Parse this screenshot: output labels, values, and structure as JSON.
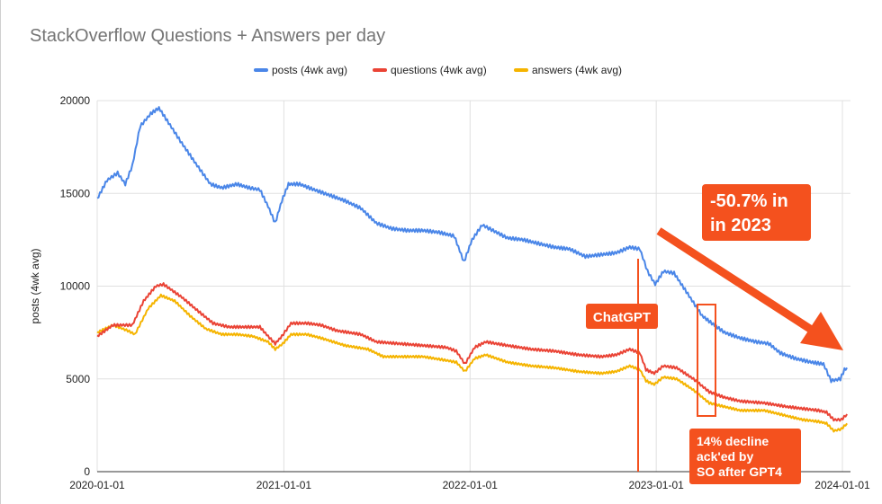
{
  "chart_data": {
    "type": "line",
    "title": "StackOverflow Questions + Answers per day",
    "ylabel": "posts (4wk avg)",
    "xlabel": "",
    "ylim": [
      0,
      20000
    ],
    "yticks": [
      0,
      5000,
      10000,
      15000,
      20000
    ],
    "xticks": [
      "2020-01-01",
      "2021-01-01",
      "2022-01-01",
      "2023-01-01",
      "2024-01-01"
    ],
    "grid": true,
    "legend_position": "top",
    "series": [
      {
        "name": "posts (4wk avg)",
        "color": "#4a86e8",
        "points": [
          [
            "2020-01-01",
            14700
          ],
          [
            "2020-01-20",
            15700
          ],
          [
            "2020-02-10",
            16100
          ],
          [
            "2020-02-25",
            15500
          ],
          [
            "2020-03-10",
            16500
          ],
          [
            "2020-03-25",
            18600
          ],
          [
            "2020-04-15",
            19300
          ],
          [
            "2020-05-01",
            19600
          ],
          [
            "2020-05-20",
            18800
          ],
          [
            "2020-06-15",
            17700
          ],
          [
            "2020-07-15",
            16500
          ],
          [
            "2020-08-10",
            15500
          ],
          [
            "2020-09-01",
            15300
          ],
          [
            "2020-10-01",
            15500
          ],
          [
            "2020-10-25",
            15300
          ],
          [
            "2020-11-15",
            15200
          ],
          [
            "2020-12-01",
            14300
          ],
          [
            "2020-12-15",
            13400
          ],
          [
            "2020-12-28",
            14600
          ],
          [
            "2021-01-10",
            15500
          ],
          [
            "2021-02-01",
            15500
          ],
          [
            "2021-03-01",
            15200
          ],
          [
            "2021-04-01",
            14900
          ],
          [
            "2021-05-01",
            14600
          ],
          [
            "2021-06-01",
            14200
          ],
          [
            "2021-07-01",
            13400
          ],
          [
            "2021-08-01",
            13100
          ],
          [
            "2021-09-01",
            13000
          ],
          [
            "2021-10-01",
            13000
          ],
          [
            "2021-11-01",
            12900
          ],
          [
            "2021-12-01",
            12700
          ],
          [
            "2021-12-20",
            11300
          ],
          [
            "2022-01-05",
            12500
          ],
          [
            "2022-01-25",
            13300
          ],
          [
            "2022-02-15",
            13000
          ],
          [
            "2022-03-15",
            12600
          ],
          [
            "2022-04-15",
            12500
          ],
          [
            "2022-05-15",
            12300
          ],
          [
            "2022-06-15",
            12100
          ],
          [
            "2022-07-15",
            12000
          ],
          [
            "2022-08-15",
            11600
          ],
          [
            "2022-09-15",
            11700
          ],
          [
            "2022-10-15",
            11800
          ],
          [
            "2022-11-10",
            12100
          ],
          [
            "2022-11-30",
            12000
          ],
          [
            "2022-12-15",
            10800
          ],
          [
            "2022-12-30",
            10100
          ],
          [
            "2023-01-15",
            10800
          ],
          [
            "2023-02-05",
            10700
          ],
          [
            "2023-03-01",
            9700
          ],
          [
            "2023-04-01",
            8400
          ],
          [
            "2023-04-20",
            8000
          ],
          [
            "2023-05-15",
            7500
          ],
          [
            "2023-06-15",
            7200
          ],
          [
            "2023-07-15",
            7000
          ],
          [
            "2023-08-10",
            6900
          ],
          [
            "2023-09-01",
            6400
          ],
          [
            "2023-10-01",
            6100
          ],
          [
            "2023-11-01",
            5900
          ],
          [
            "2023-11-25",
            5800
          ],
          [
            "2023-12-10",
            4900
          ],
          [
            "2023-12-28",
            5000
          ],
          [
            "2024-01-05",
            5500
          ],
          [
            "2024-01-10",
            5600
          ]
        ]
      },
      {
        "name": "questions (4wk avg)",
        "color": "#ea4335",
        "points": [
          [
            "2020-01-01",
            7300
          ],
          [
            "2020-02-01",
            7900
          ],
          [
            "2020-03-10",
            7900
          ],
          [
            "2020-04-01",
            9200
          ],
          [
            "2020-04-25",
            10000
          ],
          [
            "2020-05-10",
            10100
          ],
          [
            "2020-06-15",
            9400
          ],
          [
            "2020-07-15",
            8700
          ],
          [
            "2020-08-15",
            8000
          ],
          [
            "2020-09-15",
            7800
          ],
          [
            "2020-10-15",
            7800
          ],
          [
            "2020-11-15",
            7800
          ],
          [
            "2020-12-01",
            7300
          ],
          [
            "2020-12-15",
            6900
          ],
          [
            "2020-12-28",
            7300
          ],
          [
            "2021-01-15",
            8000
          ],
          [
            "2021-02-15",
            8000
          ],
          [
            "2021-03-15",
            7900
          ],
          [
            "2021-04-15",
            7600
          ],
          [
            "2021-06-01",
            7400
          ],
          [
            "2021-07-01",
            7000
          ],
          [
            "2021-08-15",
            6900
          ],
          [
            "2021-10-01",
            6800
          ],
          [
            "2021-11-15",
            6700
          ],
          [
            "2021-12-05",
            6500
          ],
          [
            "2021-12-22",
            5800
          ],
          [
            "2022-01-10",
            6700
          ],
          [
            "2022-02-01",
            7000
          ],
          [
            "2022-03-15",
            6800
          ],
          [
            "2022-05-01",
            6600
          ],
          [
            "2022-06-15",
            6500
          ],
          [
            "2022-08-01",
            6300
          ],
          [
            "2022-09-15",
            6200
          ],
          [
            "2022-10-15",
            6300
          ],
          [
            "2022-11-10",
            6600
          ],
          [
            "2022-11-30",
            6400
          ],
          [
            "2022-12-12",
            5500
          ],
          [
            "2022-12-28",
            5300
          ],
          [
            "2023-01-15",
            5700
          ],
          [
            "2023-02-10",
            5600
          ],
          [
            "2023-03-15",
            5000
          ],
          [
            "2023-04-15",
            4300
          ],
          [
            "2023-05-15",
            4000
          ],
          [
            "2023-06-15",
            3800
          ],
          [
            "2023-08-01",
            3700
          ],
          [
            "2023-09-15",
            3500
          ],
          [
            "2023-10-15",
            3400
          ],
          [
            "2023-11-15",
            3300
          ],
          [
            "2023-12-01",
            3200
          ],
          [
            "2023-12-15",
            2800
          ],
          [
            "2023-12-30",
            2800
          ],
          [
            "2024-01-10",
            3100
          ]
        ]
      },
      {
        "name": "answers (4wk avg)",
        "color": "#f5b400",
        "points": [
          [
            "2020-01-01",
            7500
          ],
          [
            "2020-02-01",
            7900
          ],
          [
            "2020-03-01",
            7600
          ],
          [
            "2020-03-15",
            7400
          ],
          [
            "2020-04-10",
            8800
          ],
          [
            "2020-05-05",
            9500
          ],
          [
            "2020-06-01",
            9200
          ],
          [
            "2020-07-01",
            8400
          ],
          [
            "2020-08-01",
            7700
          ],
          [
            "2020-09-01",
            7400
          ],
          [
            "2020-10-01",
            7400
          ],
          [
            "2020-11-01",
            7300
          ],
          [
            "2020-12-01",
            7000
          ],
          [
            "2020-12-15",
            6600
          ],
          [
            "2020-12-30",
            6900
          ],
          [
            "2021-01-15",
            7400
          ],
          [
            "2021-02-15",
            7400
          ],
          [
            "2021-03-15",
            7200
          ],
          [
            "2021-05-01",
            6800
          ],
          [
            "2021-06-15",
            6600
          ],
          [
            "2021-07-15",
            6200
          ],
          [
            "2021-08-15",
            6200
          ],
          [
            "2021-10-01",
            6200
          ],
          [
            "2021-11-15",
            6000
          ],
          [
            "2021-12-05",
            5900
          ],
          [
            "2021-12-22",
            5400
          ],
          [
            "2022-01-10",
            6100
          ],
          [
            "2022-02-01",
            6300
          ],
          [
            "2022-03-15",
            5900
          ],
          [
            "2022-05-01",
            5700
          ],
          [
            "2022-06-15",
            5600
          ],
          [
            "2022-08-01",
            5400
          ],
          [
            "2022-09-15",
            5300
          ],
          [
            "2022-10-15",
            5400
          ],
          [
            "2022-11-10",
            5700
          ],
          [
            "2022-11-30",
            5500
          ],
          [
            "2022-12-12",
            4900
          ],
          [
            "2022-12-28",
            4700
          ],
          [
            "2023-01-15",
            5100
          ],
          [
            "2023-02-10",
            5000
          ],
          [
            "2023-03-15",
            4400
          ],
          [
            "2023-04-15",
            3700
          ],
          [
            "2023-05-15",
            3500
          ],
          [
            "2023-06-15",
            3300
          ],
          [
            "2023-08-01",
            3300
          ],
          [
            "2023-09-15",
            3000
          ],
          [
            "2023-10-15",
            2800
          ],
          [
            "2023-11-15",
            2700
          ],
          [
            "2023-12-01",
            2600
          ],
          [
            "2023-12-15",
            2200
          ],
          [
            "2023-12-30",
            2300
          ],
          [
            "2024-01-10",
            2600
          ]
        ]
      }
    ],
    "annotations": {
      "chatgpt": {
        "label": "ChatGPT",
        "date": "2022-11-30",
        "color": "#f4511e"
      },
      "decline_2023": {
        "line1": "-50.7% in",
        "line2": "in 2023",
        "color": "#f4511e"
      },
      "gpt4_decline": {
        "line1": "14% decline",
        "line2": "ack'ed by",
        "line3": "SO after GPT4",
        "color": "#f4511e"
      }
    }
  }
}
